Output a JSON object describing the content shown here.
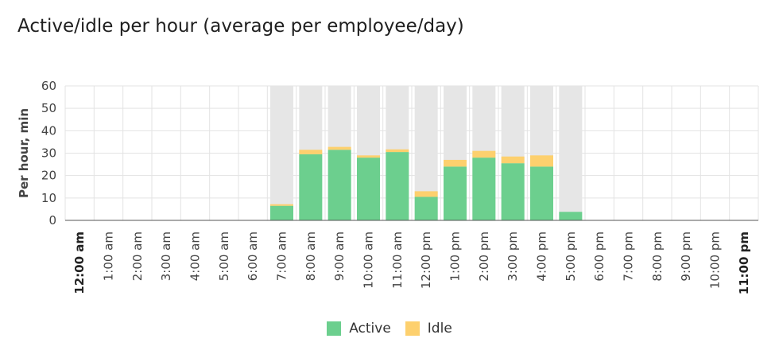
{
  "title": "Active/idle per hour (average per employee/day)",
  "colors": {
    "active": "#6ccf8e",
    "idle": "#fdd06e",
    "background_bar": "#e6e6e6",
    "grid": "#e3e3e3",
    "axis": "#333333"
  },
  "legend": {
    "active_label": "Active",
    "idle_label": "Idle"
  },
  "chart_data": {
    "type": "bar",
    "stacked": true,
    "title": "Active/idle per hour (average per employee/day)",
    "ylabel": "Per hour, min",
    "xlabel": "",
    "ylim": [
      0,
      60
    ],
    "yticks": [
      0,
      10,
      20,
      30,
      40,
      50,
      60
    ],
    "grid": true,
    "legend_position": "bottom",
    "bold_categories": [
      "12:00 am",
      "11:00 pm"
    ],
    "categories": [
      "12:00 am",
      "1:00 am",
      "2:00 am",
      "3:00 am",
      "4:00 am",
      "5:00 am",
      "6:00 am",
      "7:00 am",
      "8:00 am",
      "9:00 am",
      "10:00 am",
      "11:00 am",
      "12:00 pm",
      "1:00 pm",
      "2:00 pm",
      "3:00 pm",
      "4:00 pm",
      "5:00 pm",
      "6:00 pm",
      "7:00 pm",
      "8:00 pm",
      "9:00 pm",
      "10:00 pm",
      "11:00 pm"
    ],
    "background_max": [
      0,
      0,
      0,
      0,
      0,
      0,
      0,
      60,
      60,
      60,
      60,
      60,
      60,
      60,
      60,
      60,
      60,
      60,
      0,
      0,
      0,
      0,
      0,
      0
    ],
    "series": [
      {
        "name": "Active",
        "values": [
          0,
          0,
          0,
          0,
          0,
          0,
          0,
          6.5,
          29.5,
          31.5,
          28,
          30.5,
          10.5,
          24,
          28,
          25.5,
          24,
          3.8,
          0,
          0,
          0,
          0,
          0,
          0
        ]
      },
      {
        "name": "Idle",
        "values": [
          0,
          0,
          0,
          0,
          0,
          0,
          0,
          0.7,
          2,
          1.3,
          1,
          1.2,
          2.5,
          3,
          3,
          3,
          5,
          0,
          0,
          0,
          0,
          0,
          0,
          0
        ]
      }
    ]
  }
}
